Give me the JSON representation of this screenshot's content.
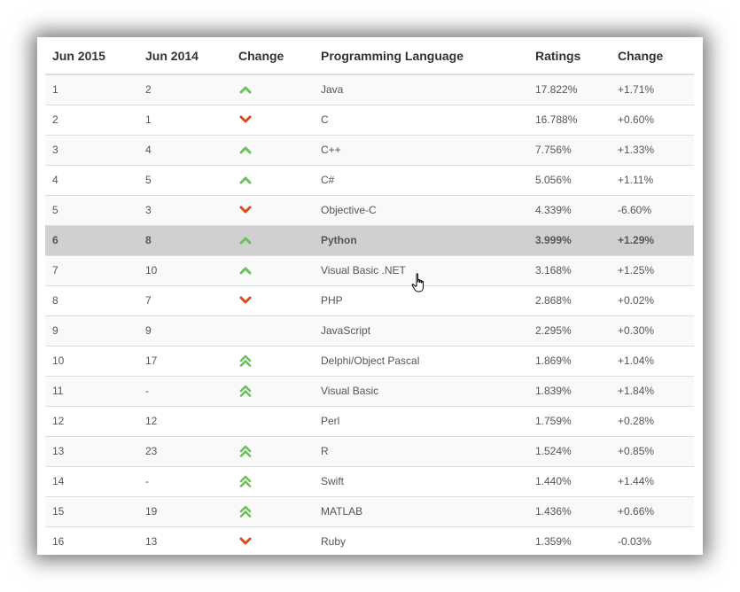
{
  "colors": {
    "up": "#6cbf5b",
    "down": "#dd4b1d",
    "selected_row": "#d0d0d0"
  },
  "headers": [
    "Jun 2015",
    "Jun 2014",
    "Change",
    "Programming Language",
    "Ratings",
    "Change"
  ],
  "rows": [
    {
      "jun2015": "1",
      "jun2014": "2",
      "trend": "up",
      "language": "Java",
      "ratings": "17.822%",
      "change": "+1.71%"
    },
    {
      "jun2015": "2",
      "jun2014": "1",
      "trend": "down",
      "language": "C",
      "ratings": "16.788%",
      "change": "+0.60%"
    },
    {
      "jun2015": "3",
      "jun2014": "4",
      "trend": "up",
      "language": "C++",
      "ratings": "7.756%",
      "change": "+1.33%"
    },
    {
      "jun2015": "4",
      "jun2014": "5",
      "trend": "up",
      "language": "C#",
      "ratings": "5.056%",
      "change": "+1.11%"
    },
    {
      "jun2015": "5",
      "jun2014": "3",
      "trend": "down",
      "language": "Objective-C",
      "ratings": "4.339%",
      "change": "-6.60%"
    },
    {
      "jun2015": "6",
      "jun2014": "8",
      "trend": "up",
      "language": "Python",
      "ratings": "3.999%",
      "change": "+1.29%",
      "selected": true
    },
    {
      "jun2015": "7",
      "jun2014": "10",
      "trend": "up",
      "language": "Visual Basic .NET",
      "ratings": "3.168%",
      "change": "+1.25%"
    },
    {
      "jun2015": "8",
      "jun2014": "7",
      "trend": "down",
      "language": "PHP",
      "ratings": "2.868%",
      "change": "+0.02%"
    },
    {
      "jun2015": "9",
      "jun2014": "9",
      "trend": "none",
      "language": "JavaScript",
      "ratings": "2.295%",
      "change": "+0.30%"
    },
    {
      "jun2015": "10",
      "jun2014": "17",
      "trend": "double-up",
      "language": "Delphi/Object Pascal",
      "ratings": "1.869%",
      "change": "+1.04%"
    },
    {
      "jun2015": "11",
      "jun2014": "-",
      "trend": "double-up",
      "language": "Visual Basic",
      "ratings": "1.839%",
      "change": "+1.84%"
    },
    {
      "jun2015": "12",
      "jun2014": "12",
      "trend": "none",
      "language": "Perl",
      "ratings": "1.759%",
      "change": "+0.28%"
    },
    {
      "jun2015": "13",
      "jun2014": "23",
      "trend": "double-up",
      "language": "R",
      "ratings": "1.524%",
      "change": "+0.85%"
    },
    {
      "jun2015": "14",
      "jun2014": "-",
      "trend": "double-up",
      "language": "Swift",
      "ratings": "1.440%",
      "change": "+1.44%"
    },
    {
      "jun2015": "15",
      "jun2014": "19",
      "trend": "double-up",
      "language": "MATLAB",
      "ratings": "1.436%",
      "change": "+0.66%"
    },
    {
      "jun2015": "16",
      "jun2014": "13",
      "trend": "down",
      "language": "Ruby",
      "ratings": "1.359%",
      "change": "-0.03%"
    }
  ]
}
